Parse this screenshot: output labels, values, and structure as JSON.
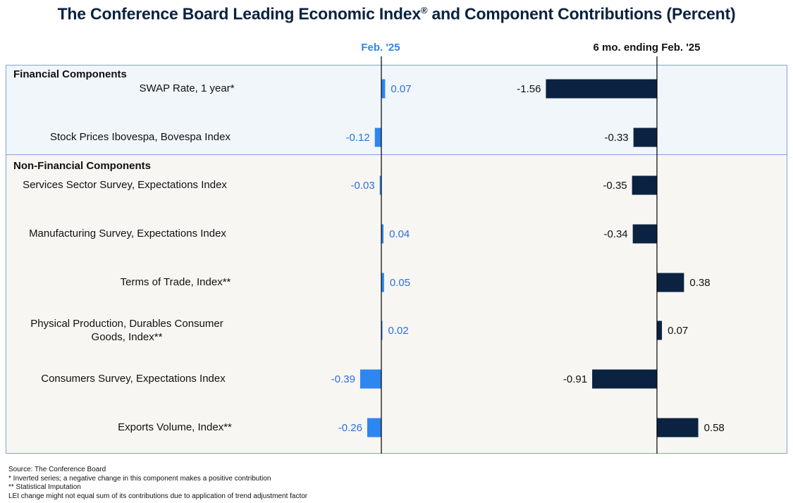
{
  "title": "The Conference Board Leading Economic Index",
  "title_mark": "®",
  "title_suffix": " and Component Contributions (Percent)",
  "columns": {
    "month": "Feb. '25",
    "six_month": "6 mo. ending Feb. '25"
  },
  "sections": [
    {
      "label": "Financial Components"
    },
    {
      "label": "Non-Financial Components"
    }
  ],
  "colors": {
    "month_bar": "#2e86f0",
    "month_label": "#2e6fe0",
    "six_month_bar": "#0b2240",
    "six_month_label": "#111111",
    "axis": "#000000"
  },
  "chart_data": {
    "type": "bar",
    "orientation": "horizontal",
    "title": "The Conference Board Leading Economic Index® and Component Contributions (Percent)",
    "categories": [
      "SWAP Rate, 1 year*",
      "Stock Prices Ibovespa, Bovespa Index",
      "Services Sector Survey, Expectations Index",
      "Manufacturing Survey, Expectations Index",
      "Terms of Trade, Index**",
      "Physical Production, Durables Consumer Goods, Index**",
      "Consumers Survey, Expectations Index",
      "Exports Volume, Index**"
    ],
    "groups": [
      "Financial Components",
      "Financial Components",
      "Non-Financial Components",
      "Non-Financial Components",
      "Non-Financial Components",
      "Non-Financial Components",
      "Non-Financial Components",
      "Non-Financial Components"
    ],
    "series": [
      {
        "name": "Feb. '25",
        "values": [
          0.07,
          -0.12,
          -0.03,
          0.04,
          0.05,
          0.02,
          -0.39,
          -0.26
        ]
      },
      {
        "name": "6 mo. ending Feb. '25",
        "values": [
          -1.56,
          -0.33,
          -0.35,
          -0.34,
          0.38,
          0.07,
          -0.91,
          0.58
        ]
      }
    ],
    "value_labels": {
      "Feb. '25": [
        "0.07",
        "-0.12",
        "-0.03",
        "0.04",
        "0.05",
        "0.02",
        "-0.39",
        "-0.26"
      ],
      "6 mo. ending Feb. '25": [
        "-1.56",
        "-0.33",
        "-0.35",
        "-0.34",
        "0.38",
        "0.07",
        "-0.91",
        "0.58"
      ]
    },
    "xlabel": "",
    "ylabel": "",
    "grid": false,
    "legend": "none"
  },
  "footnotes": [
    "Source: The Conference Board",
    "*  Inverted series; a negative change in this component makes a positive contribution",
    "** Statistical Imputation",
    "LEI change might not equal sum of its contributions due to application of trend adjustment factor"
  ]
}
